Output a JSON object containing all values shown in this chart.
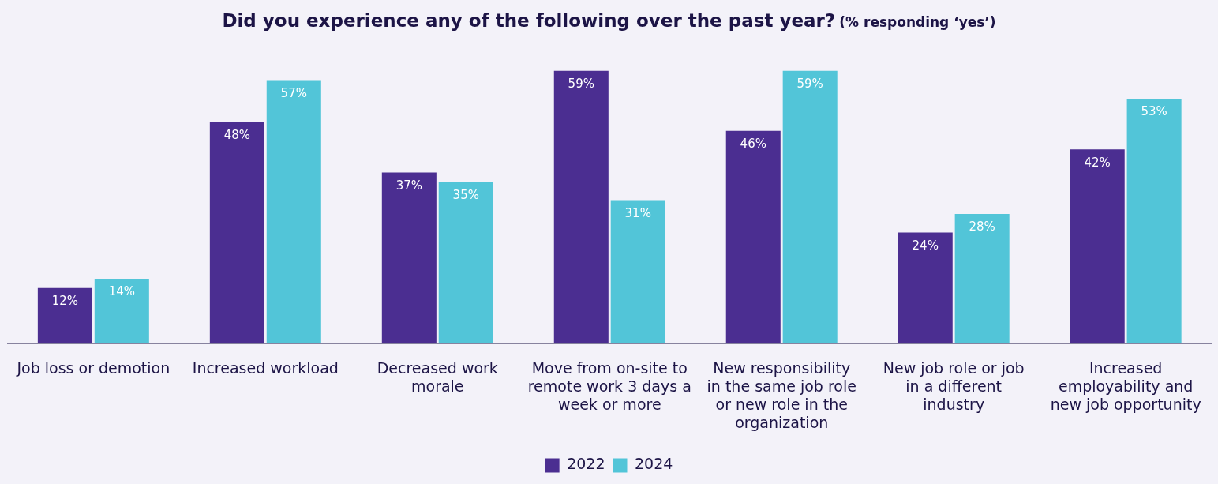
{
  "chart_data": {
    "type": "bar",
    "title": "Did you experience any of the following over the past year?",
    "subtitle": "(% responding ‘yes’)",
    "categories": [
      "Job loss or demotion",
      "Increased workload",
      "Decreased work morale",
      "Move from on-site to remote work 3 days a week or more",
      "New responsibility in the same job role or new role in the organization",
      "New job role or job in a different industry",
      "Increased employability and new job opportunity"
    ],
    "series": [
      {
        "name": "2022",
        "color": "#4b2e91",
        "values": [
          12,
          48,
          37,
          59,
          46,
          24,
          42
        ],
        "value_labels": [
          "12%",
          "48%",
          "37%",
          "59%",
          "46%",
          "24%",
          "42%"
        ]
      },
      {
        "name": "2024",
        "color": "#52c5d8",
        "values": [
          14,
          57,
          35,
          31,
          59,
          28,
          53
        ],
        "value_labels": [
          "14%",
          "57%",
          "35%",
          "31%",
          "59%",
          "28%",
          "53%"
        ]
      }
    ],
    "legend": "bottom",
    "grid": false,
    "tick_labels": "x"
  }
}
